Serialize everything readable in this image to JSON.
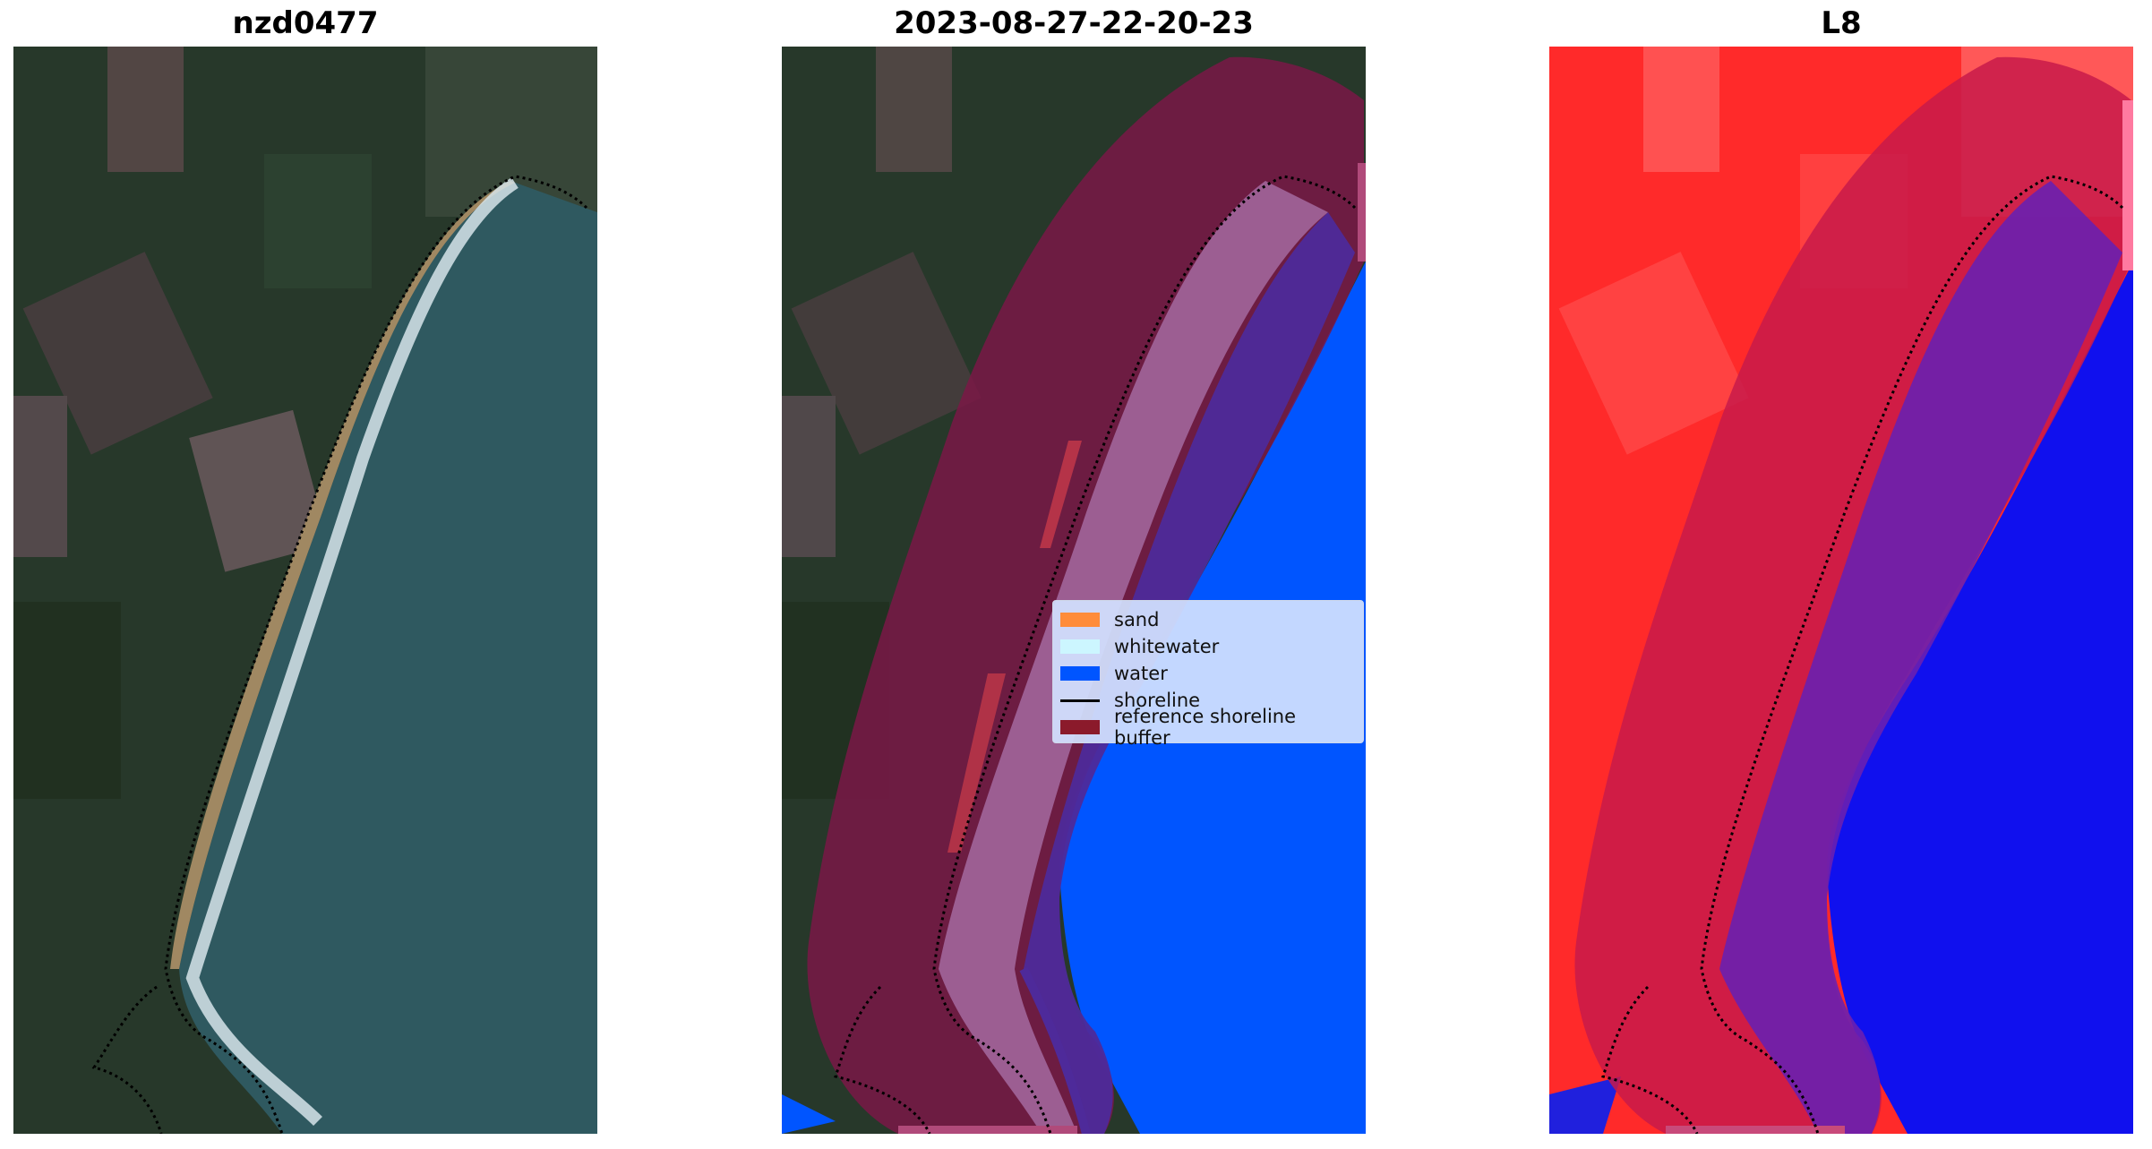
{
  "panels": [
    {
      "title": "nzd0477",
      "kind": "rgb-satellite-image"
    },
    {
      "title": "2023-08-27-22-20-23",
      "kind": "classified-image"
    },
    {
      "title": "L8",
      "kind": "water-index-image"
    }
  ],
  "legend": {
    "items": [
      {
        "label": "sand",
        "color": "#ff8c3a",
        "type": "patch"
      },
      {
        "label": "whitewater",
        "color": "#ccf6ff",
        "type": "patch"
      },
      {
        "label": "water",
        "color": "#0055ff",
        "type": "patch"
      },
      {
        "label": "shoreline",
        "color": "#000000",
        "type": "line"
      },
      {
        "label": "reference shoreline buffer",
        "color": "#8b1a2b",
        "type": "patch"
      }
    ]
  },
  "colors": {
    "land": "#27382a",
    "ocean": "#2f5960",
    "water_class": "#0055ff",
    "buffer": "#7a1846",
    "index_land": "#ff2a2a",
    "index_water": "#1010ee"
  }
}
